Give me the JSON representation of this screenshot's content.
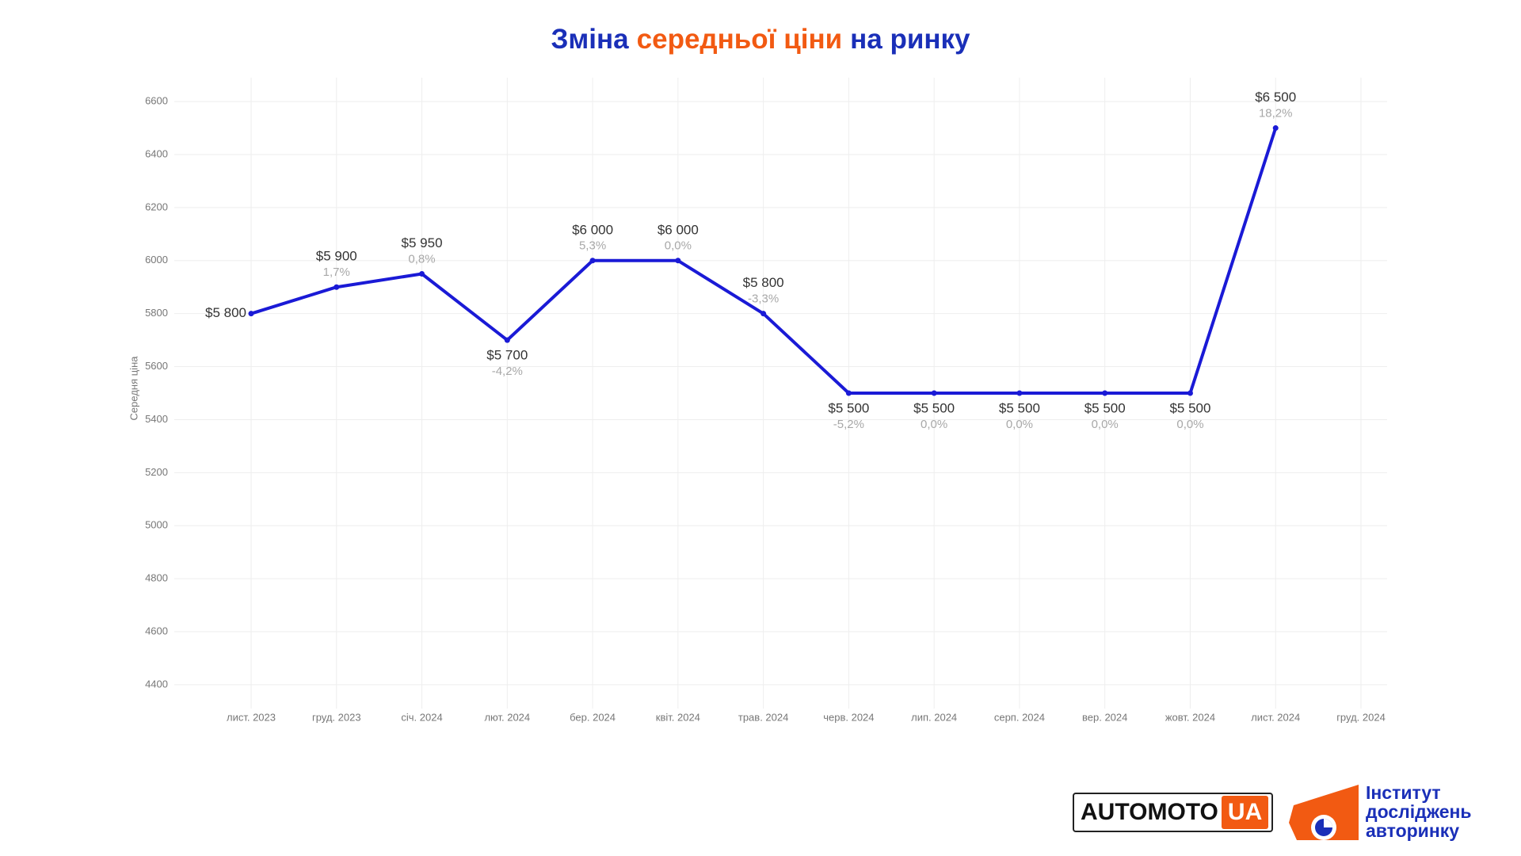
{
  "chart_data": {
    "type": "line",
    "title_parts": [
      {
        "text": "Зміна",
        "color": "#1a2fb8"
      },
      {
        "text": "середньої ціни",
        "color": "#f25a12"
      },
      {
        "text": "на ринку",
        "color": "#1a2fb8"
      }
    ],
    "y_label": "Середня ціна",
    "categories": [
      "лист. 2023",
      "груд. 2023",
      "січ. 2024",
      "лют. 2024",
      "бер. 2024",
      "квіт. 2024",
      "трав. 2024",
      "черв. 2024",
      "лип. 2024",
      "серп. 2024",
      "вер. 2024",
      "жовт. 2024",
      "лист. 2024",
      "груд. 2024"
    ],
    "series": [
      {
        "name": "Середня ціна",
        "color": "#1a1ad6",
        "values": [
          5800,
          5900,
          5950,
          5700,
          6000,
          6000,
          5800,
          5500,
          5500,
          5500,
          5500,
          5500,
          6500,
          null
        ],
        "value_labels": [
          "$5 800",
          "$5 900",
          "$5 950",
          "$5 700",
          "$6 000",
          "$6 000",
          "$5 800",
          "$5 500",
          "$5 500",
          "$5 500",
          "$5 500",
          "$5 500",
          "$6 500",
          null
        ],
        "change_labels": [
          null,
          "1,7%",
          "0,8%",
          "-4,2%",
          "5,3%",
          "0,0%",
          "-3,3%",
          "-5,2%",
          "0,0%",
          "0,0%",
          "0,0%",
          "0,0%",
          "18,2%",
          null
        ]
      }
    ],
    "ylim": [
      4310,
      6690
    ],
    "yticks": [
      4400,
      4600,
      4800,
      5000,
      5200,
      5400,
      5600,
      5800,
      6000,
      6200,
      6400,
      6600
    ],
    "grid": true
  },
  "logos": {
    "automoto": "AUTOMOTO",
    "automoto_suffix": "UA",
    "institute": [
      "Інститут",
      "досліджень",
      "авторинку"
    ]
  }
}
